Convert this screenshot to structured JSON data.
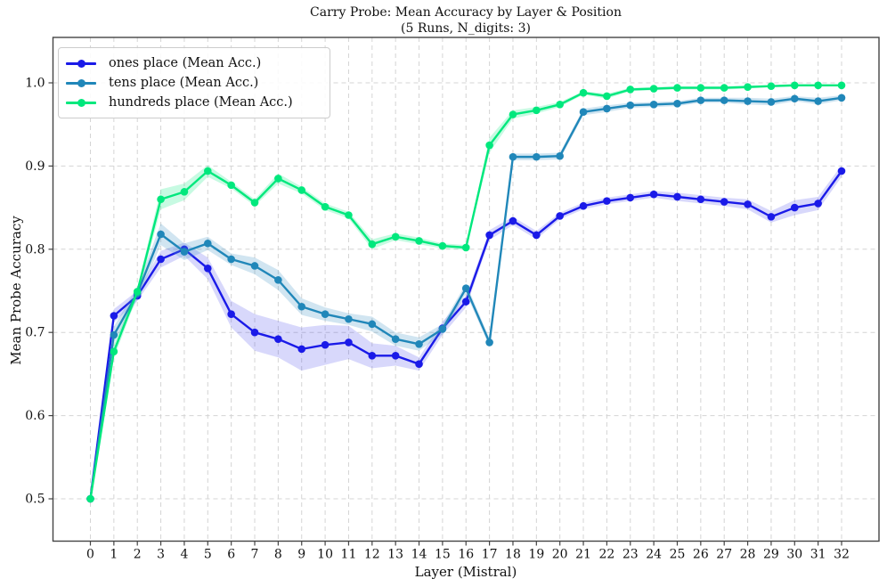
{
  "figure": {
    "title_line1": "Carry Probe: Mean Accuracy by Layer & Position",
    "title_line2": "(5 Runs, N_digits: 3)",
    "xlabel": "Layer (Mistral)",
    "ylabel": "Mean Probe Accuracy"
  },
  "chart_data": {
    "type": "line",
    "title": "Carry Probe: Mean Accuracy by Layer & Position (5 Runs, N_digits: 3)",
    "xlabel": "Layer (Mistral)",
    "ylabel": "Mean Probe Accuracy",
    "x": [
      0,
      1,
      2,
      3,
      4,
      5,
      6,
      7,
      8,
      9,
      10,
      11,
      12,
      13,
      14,
      15,
      16,
      17,
      18,
      19,
      20,
      21,
      22,
      23,
      24,
      25,
      26,
      27,
      28,
      29,
      30,
      31,
      32
    ],
    "yticks": [
      0.5,
      0.6,
      0.7,
      0.8,
      0.9,
      1.0
    ],
    "ylim": [
      0.444,
      1.056
    ],
    "grid": true,
    "grid_style": "dashed",
    "grid_color": "#d4d4d4",
    "legend_position": "upper left",
    "series": [
      {
        "name": "ones place (Mean Acc.)",
        "color": "#1a1ae8",
        "band_color": "rgba(60,60,235,0.20)",
        "values": [
          0.5,
          0.72,
          0.744,
          0.788,
          0.8,
          0.777,
          0.722,
          0.7,
          0.692,
          0.68,
          0.685,
          0.688,
          0.672,
          0.672,
          0.662,
          0.705,
          0.737,
          0.817,
          0.834,
          0.817,
          0.84,
          0.852,
          0.858,
          0.862,
          0.866,
          0.863,
          0.86,
          0.857,
          0.854,
          0.839,
          0.85,
          0.855,
          0.894
        ],
        "band": [
          0.003,
          0.008,
          0.006,
          0.01,
          0.008,
          0.013,
          0.016,
          0.022,
          0.022,
          0.026,
          0.024,
          0.02,
          0.015,
          0.012,
          0.008,
          0.008,
          0.007,
          0.006,
          0.005,
          0.005,
          0.004,
          0.004,
          0.004,
          0.004,
          0.004,
          0.005,
          0.005,
          0.005,
          0.006,
          0.007,
          0.009,
          0.008,
          0.007
        ]
      },
      {
        "name": "tens place (Mean Acc.)",
        "color": "#2087b9",
        "band_color": "rgba(70,150,200,0.25)",
        "values": [
          0.5,
          0.697,
          0.747,
          0.818,
          0.797,
          0.807,
          0.788,
          0.78,
          0.763,
          0.731,
          0.722,
          0.716,
          0.71,
          0.692,
          0.686,
          0.704,
          0.753,
          0.688,
          0.911,
          0.911,
          0.912,
          0.965,
          0.969,
          0.973,
          0.974,
          0.975,
          0.979,
          0.979,
          0.978,
          0.977,
          0.981,
          0.978,
          0.982
        ],
        "band": [
          0.003,
          0.01,
          0.008,
          0.013,
          0.01,
          0.008,
          0.007,
          0.01,
          0.012,
          0.01,
          0.008,
          0.007,
          0.009,
          0.008,
          0.008,
          0.006,
          0.006,
          0.005,
          0.004,
          0.004,
          0.004,
          0.004,
          0.004,
          0.003,
          0.003,
          0.003,
          0.003,
          0.003,
          0.004,
          0.004,
          0.003,
          0.004,
          0.003
        ]
      },
      {
        "name": "hundreds place (Mean Acc.)",
        "color": "#00e87d",
        "band_color": "rgba(0,232,125,0.22)",
        "values": [
          0.5,
          0.677,
          0.749,
          0.86,
          0.869,
          0.894,
          0.877,
          0.856,
          0.885,
          0.871,
          0.851,
          0.841,
          0.806,
          0.815,
          0.81,
          0.804,
          0.802,
          0.925,
          0.962,
          0.967,
          0.974,
          0.988,
          0.984,
          0.992,
          0.993,
          0.994,
          0.994,
          0.994,
          0.995,
          0.996,
          0.997,
          0.997,
          0.997
        ],
        "band": [
          0.002,
          0.008,
          0.005,
          0.012,
          0.01,
          0.007,
          0.004,
          0.004,
          0.006,
          0.004,
          0.004,
          0.004,
          0.006,
          0.004,
          0.004,
          0.003,
          0.003,
          0.009,
          0.005,
          0.004,
          0.003,
          0.002,
          0.003,
          0.002,
          0.002,
          0.002,
          0.002,
          0.002,
          0.002,
          0.001,
          0.001,
          0.001,
          0.001
        ]
      }
    ]
  }
}
